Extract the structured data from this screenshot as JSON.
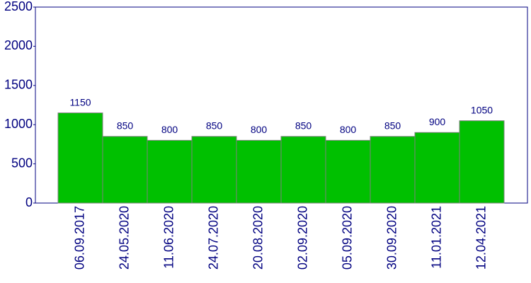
{
  "chart_data": {
    "type": "bar",
    "categories": [
      "06.09.2017",
      "24.05.2020",
      "11.06.2020",
      "24.07.2020",
      "20.08.2020",
      "02.09.2020",
      "05.09.2020",
      "30.09.2020",
      "11.01.2021",
      "12.04.2021"
    ],
    "values": [
      1150,
      850,
      800,
      850,
      800,
      850,
      800,
      850,
      900,
      1050
    ],
    "color": "#00c000",
    "ylim": [
      0,
      2500
    ],
    "yticks": [
      0,
      500,
      1000,
      1500,
      2000,
      2500
    ]
  }
}
